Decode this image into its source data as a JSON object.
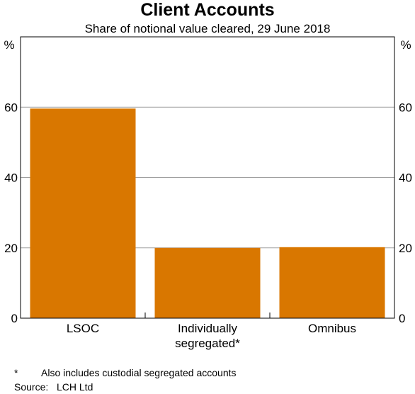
{
  "chart_data": {
    "type": "bar",
    "title": "Client Accounts",
    "subtitle": "Share of notional value cleared, 29 June 2018",
    "unit_left": "%",
    "unit_right": "%",
    "categories": [
      [
        "LSOC"
      ],
      [
        "Individually",
        "segregated*"
      ],
      [
        "Omnibus"
      ]
    ],
    "values": [
      59.6,
      20.0,
      20.2
    ],
    "ylim": [
      0,
      80
    ],
    "yticks": [
      0,
      20,
      40,
      60
    ],
    "grid": true,
    "bar_color": "#d97700"
  },
  "footnote": {
    "marker": "*",
    "text": "Also includes custodial segregated accounts"
  },
  "source": {
    "label": "Source:",
    "text": "LCH Ltd"
  }
}
